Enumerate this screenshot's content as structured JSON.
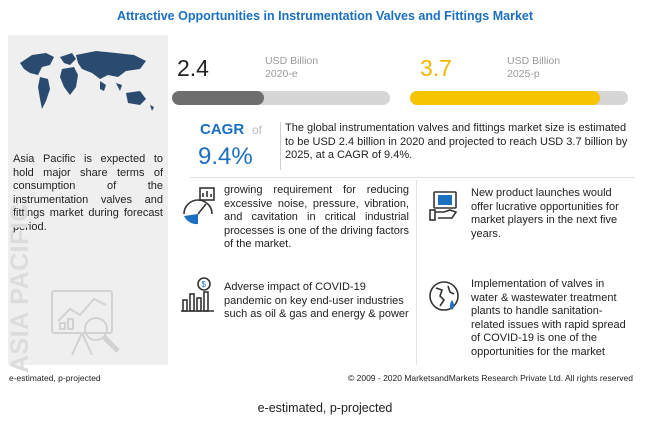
{
  "title": "Attractive Opportunities in Instrumentation Valves and Fittings Market",
  "left_panel": {
    "text": "Asia Pacific is expected to hold major share terms of consumption of the instrumentation valves and fittings market during forecast period.",
    "vertical_label": "ASIA PACIFIC"
  },
  "metrics": [
    {
      "value": "2.4",
      "unit": "USD Billion",
      "period": "2020-e",
      "progress": 0.42,
      "color": "#6e6e6e"
    },
    {
      "value": "3.7",
      "unit": "USD Billion",
      "period": "2025-p",
      "progress": 0.87,
      "color": "#f6c400"
    }
  ],
  "cagr": {
    "label": "CAGR",
    "of": "of",
    "value": "9.4%"
  },
  "summary": "The global instrumentation valves and fittings market size is estimated to be USD 2.4 billion in 2020 and projected to reach USD 3.7 billion by 2025, at a CAGR of 9.4%.",
  "items": {
    "driver": "growing requirement for reducing excessive noise, pressure, vibration, and cavitation in critical industrial processes is one of the driving factors of the market.",
    "covid": "Adverse impact of COVID-19 pandemic on key end-user industries such as oil & gas and energy & power",
    "launches": "New product launches would offer lucrative opportunities for market players in the next five years.",
    "wastewater": "Implementation of valves in water & wastewater treatment plants to handle sanitation-related issues with rapid spread of COVID-19 is one of the opportunities for the market"
  },
  "footer": {
    "note": "e-estimated, p-projected",
    "copyright": "© 2009 - 2020 MarketsandMarkets Research Private Ltd. All rights reserved"
  },
  "caption": "e-estimated, p-projected",
  "colors": {
    "accent": "#1a6fc0",
    "gold": "#f6c400",
    "gray_fill": "#6e6e6e"
  }
}
